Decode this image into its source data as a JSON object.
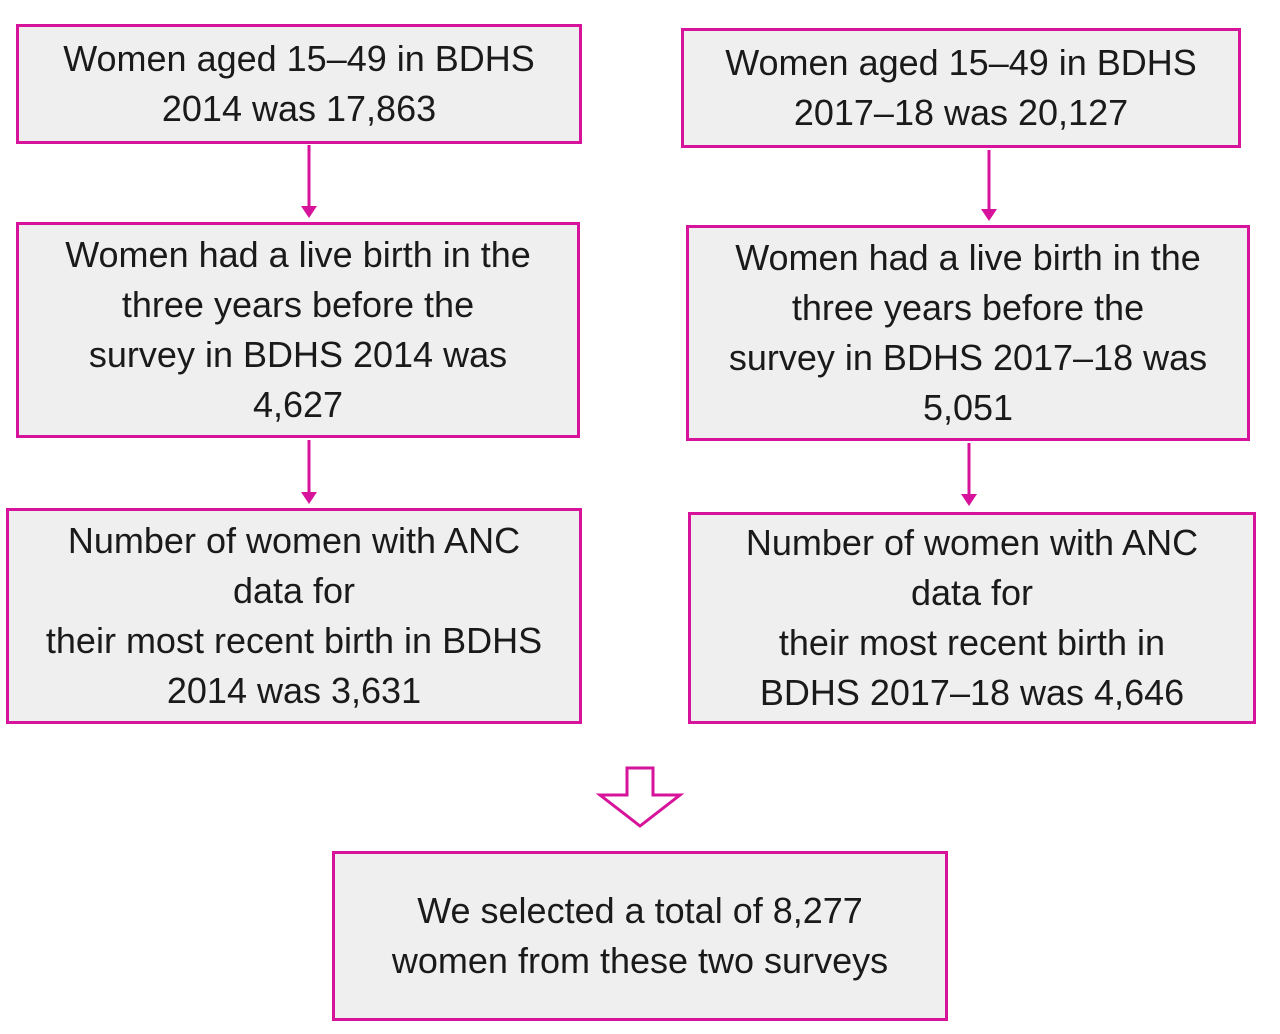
{
  "colors": {
    "border": "#d6139a",
    "box_fill": "#efefef",
    "text": "#1a1a1a"
  },
  "left_column": {
    "step1": "Women aged 15–49 in BDHS\n2014 was 17,863",
    "step2": "Women had a live birth in the\nthree years before the\nsurvey in BDHS 2014 was\n4,627",
    "step3": "Number of women with ANC\ndata for\ntheir most recent birth in BDHS\n2014 was 3,631"
  },
  "right_column": {
    "step1": "Women aged 15–49 in BDHS\n2017–18 was 20,127",
    "step2": "Women had a live birth in the\nthree years before the\nsurvey in BDHS 2017–18 was\n5,051",
    "step3": "Number of women with ANC\ndata for\ntheir most recent birth in\nBDHS 2017–18 was 4,646"
  },
  "summary": "We selected a total of 8,277\nwomen from these two surveys",
  "icons": {
    "connector": "arrow-down-icon",
    "merge": "hollow-arrow-down-icon"
  }
}
